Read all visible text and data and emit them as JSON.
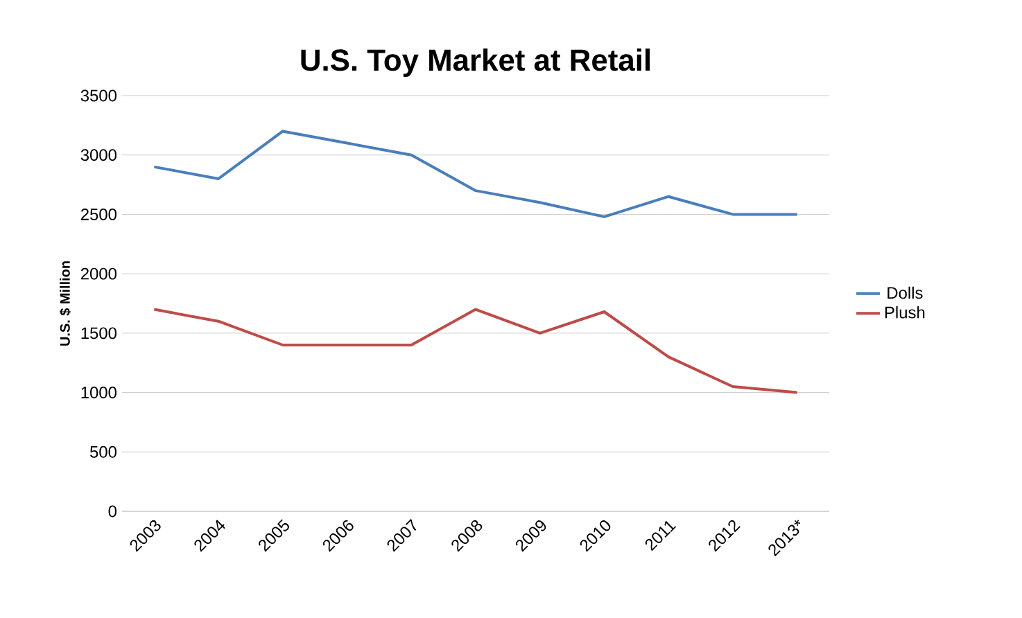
{
  "chart_data": {
    "type": "line",
    "title": "U.S. Toy Market at Retail",
    "ylabel": "U.S. $ Million",
    "categories": [
      "2003",
      "2004",
      "2005",
      "2006",
      "2007",
      "2008",
      "2009",
      "2010",
      "2011",
      "2012",
      "2013*"
    ],
    "series": [
      {
        "name": "Dolls",
        "color": "#4a7ebb",
        "values": [
          2900,
          2800,
          3200,
          3100,
          3000,
          2700,
          2600,
          2480,
          2650,
          2500,
          2500
        ]
      },
      {
        "name": "Plush",
        "color": "#be4b48",
        "values": [
          1700,
          1600,
          1400,
          1400,
          1400,
          1700,
          1500,
          1680,
          1300,
          1050,
          1000
        ]
      }
    ],
    "ylim": [
      0,
      3500
    ],
    "yticks": [
      0,
      500,
      1000,
      1500,
      2000,
      2500,
      3000,
      3500
    ],
    "grid": "y",
    "legend": "right",
    "marker": "none",
    "line_style": "solid"
  }
}
